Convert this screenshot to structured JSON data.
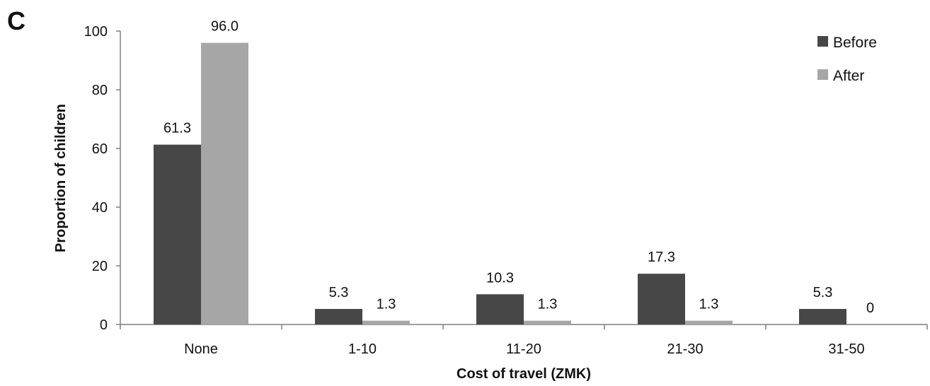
{
  "panel_label": "C",
  "chart_data": {
    "type": "bar",
    "categories": [
      "None",
      "1-10",
      "11-20",
      "21-30",
      "31-50"
    ],
    "series": [
      {
        "name": "Before",
        "values": [
          61.3,
          5.3,
          10.3,
          17.3,
          5.3
        ],
        "labels": [
          "61.3",
          "5.3",
          "10.3",
          "17.3",
          "5.3"
        ],
        "color": "#474747"
      },
      {
        "name": "After",
        "values": [
          96.0,
          1.3,
          1.3,
          1.3,
          0
        ],
        "labels": [
          "96.0",
          "1.3",
          "1.3",
          "1.3",
          "0"
        ],
        "color": "#a6a6a6"
      }
    ],
    "xlabel": "Cost of travel (ZMK)",
    "ylabel": "Proportion of children",
    "ylim": [
      0,
      100
    ],
    "yticks": [
      0,
      20,
      40,
      60,
      80,
      100
    ],
    "grid": false,
    "legend_position": "top-right"
  }
}
